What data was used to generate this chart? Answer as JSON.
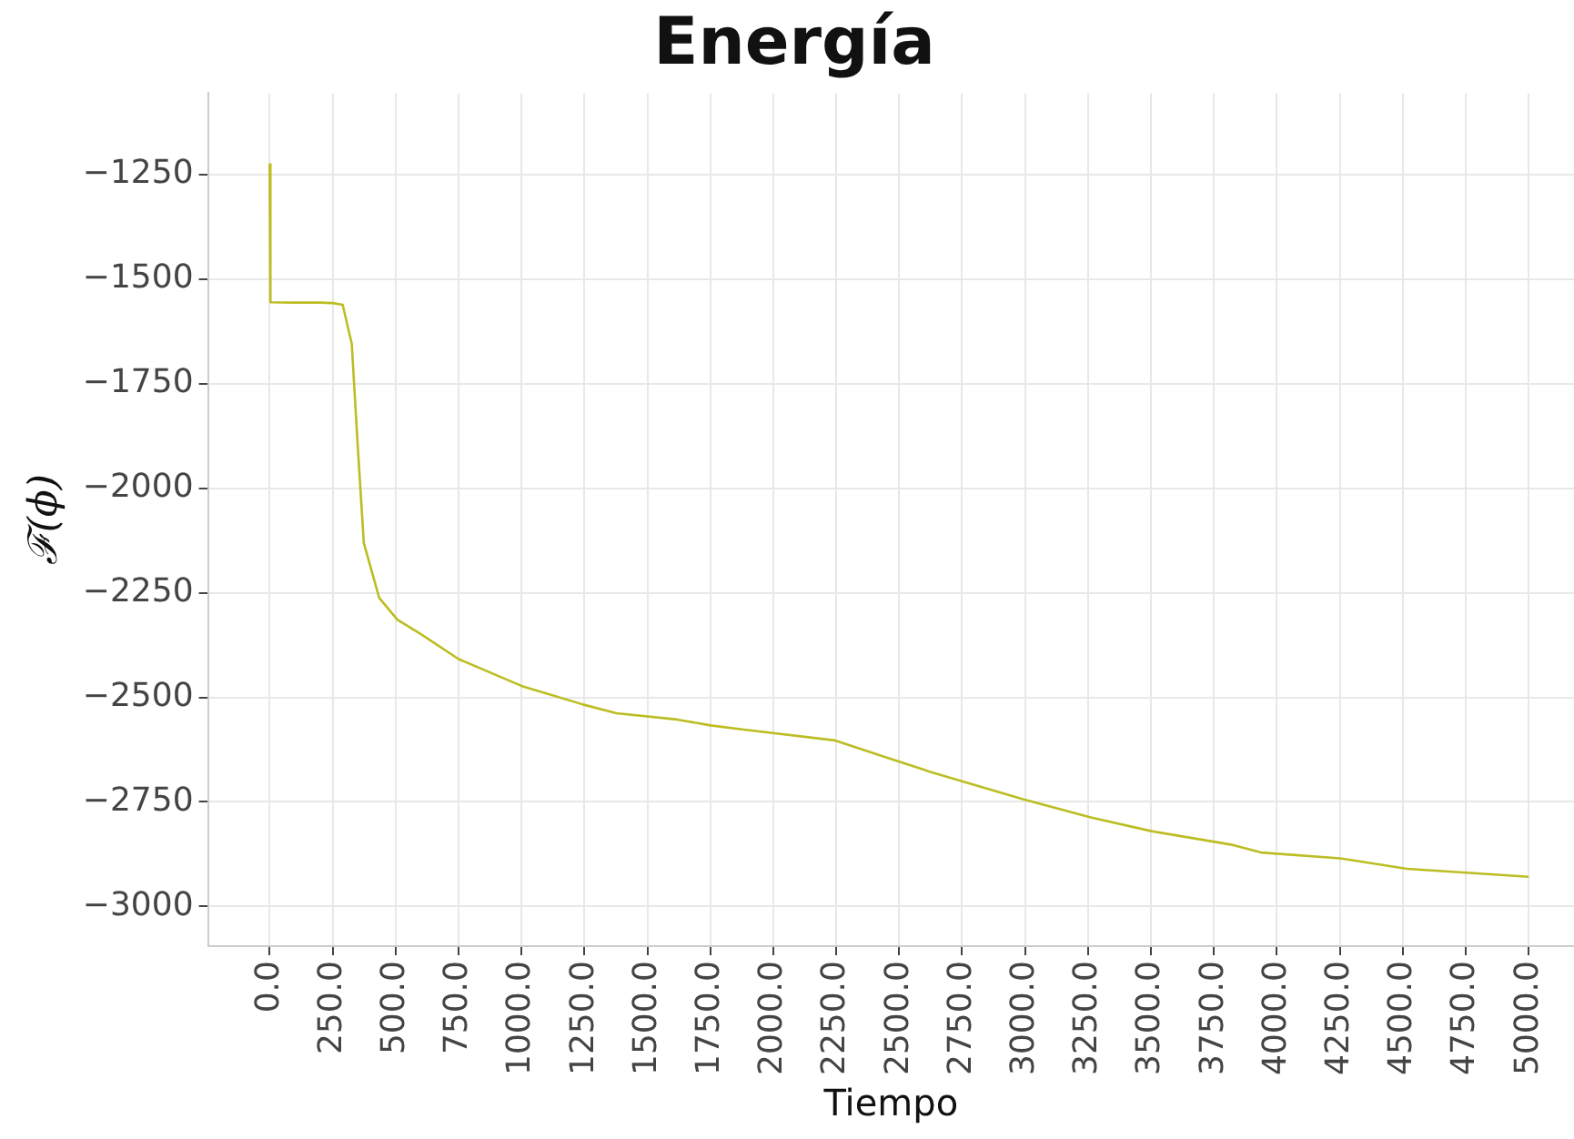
{
  "chart_data": {
    "type": "line",
    "title": "Energía",
    "xlabel": "Tiempo",
    "ylabel": "ℱ(ϕ)",
    "x": [
      0,
      1,
      5,
      100,
      200,
      250,
      290,
      326,
      350,
      374,
      435,
      507,
      604,
      749,
      1002,
      1244,
      1377,
      1618,
      1751,
      1884,
      2246,
      2440,
      2633,
      2995,
      3261,
      3502,
      3817,
      3937,
      4251,
      4517,
      5000
    ],
    "series": [
      {
        "color": "#bcbd22",
        "values": [
          -1225,
          -1555,
          -1555,
          -1556,
          -1556,
          -1557,
          -1561,
          -1654,
          -1901,
          -2131,
          -2262,
          -2314,
          -2350,
          -2408,
          -2473,
          -2517,
          -2538,
          -2553,
          -2567,
          -2577,
          -2603,
          -2642,
          -2680,
          -2744,
          -2787,
          -2820,
          -2852,
          -2871,
          -2885,
          -2910,
          -2929
        ]
      }
    ],
    "xlim": [
      -245,
      5180
    ],
    "ylim": [
      -3095,
      -1055
    ],
    "xticks": [
      {
        "value": 0,
        "label": "0.0"
      },
      {
        "value": 250,
        "label": "250.0"
      },
      {
        "value": 500,
        "label": "500.0"
      },
      {
        "value": 750,
        "label": "750.0"
      },
      {
        "value": 1000,
        "label": "1000.0"
      },
      {
        "value": 1250,
        "label": "1250.0"
      },
      {
        "value": 1500,
        "label": "1500.0"
      },
      {
        "value": 1750,
        "label": "1750.0"
      },
      {
        "value": 2000,
        "label": "2000.0"
      },
      {
        "value": 2250,
        "label": "2250.0"
      },
      {
        "value": 2500,
        "label": "2500.0"
      },
      {
        "value": 2750,
        "label": "2750.0"
      },
      {
        "value": 3000,
        "label": "3000.0"
      },
      {
        "value": 3250,
        "label": "3250.0"
      },
      {
        "value": 3500,
        "label": "3500.0"
      },
      {
        "value": 3750,
        "label": "3750.0"
      },
      {
        "value": 4000,
        "label": "4000.0"
      },
      {
        "value": 4250,
        "label": "4250.0"
      },
      {
        "value": 4500,
        "label": "4500.0"
      },
      {
        "value": 4750,
        "label": "4750.0"
      },
      {
        "value": 5000,
        "label": "5000.0"
      }
    ],
    "yticks": [
      {
        "value": -3000,
        "label": "−3000"
      },
      {
        "value": -2750,
        "label": "−2750"
      },
      {
        "value": -2500,
        "label": "−2500"
      },
      {
        "value": -2250,
        "label": "−2250"
      },
      {
        "value": -2000,
        "label": "−2000"
      },
      {
        "value": -1750,
        "label": "−1750"
      },
      {
        "value": -1500,
        "label": "−1500"
      },
      {
        "value": -1250,
        "label": "−1250"
      }
    ],
    "grid": true,
    "marker": "none",
    "line_style": "solid"
  }
}
